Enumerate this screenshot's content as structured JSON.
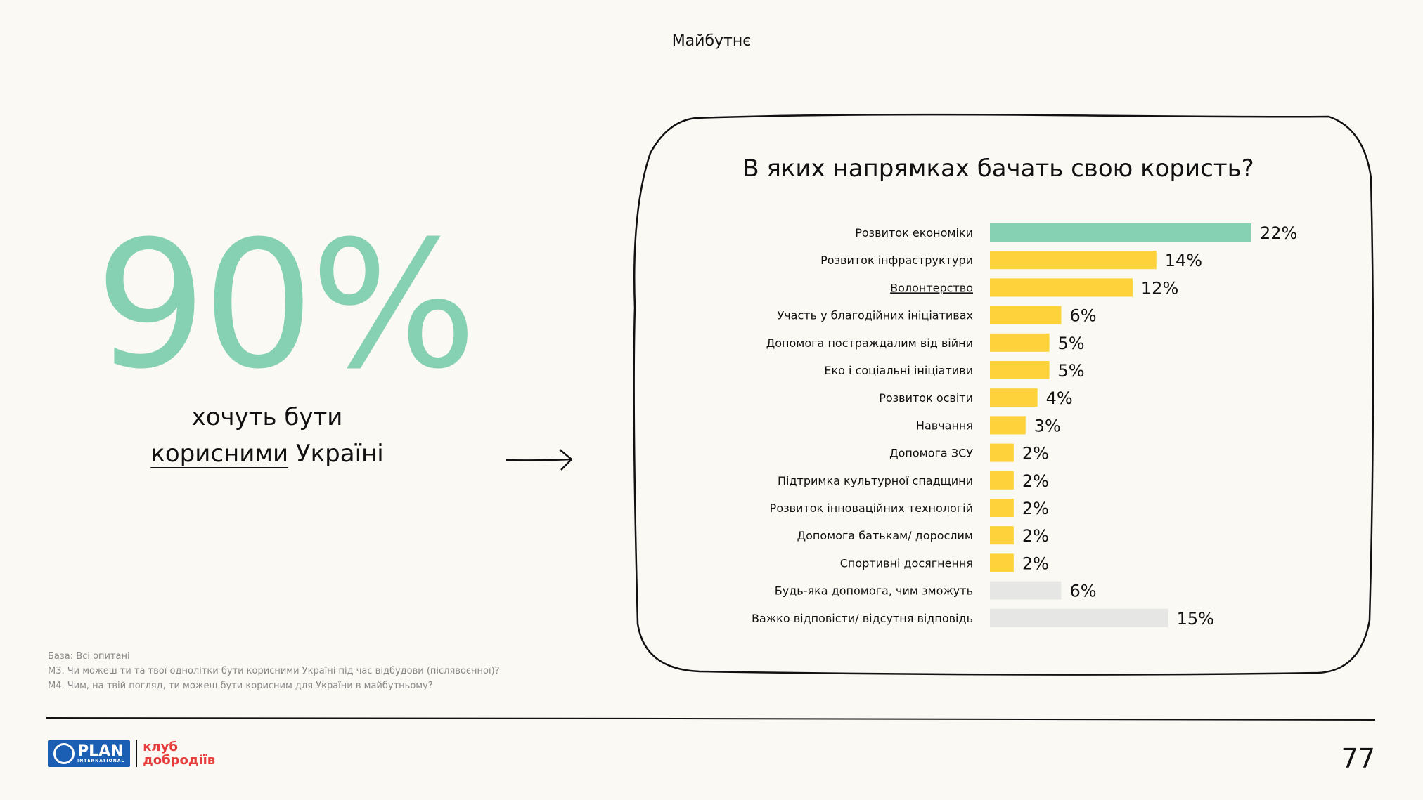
{
  "header": {
    "section": "Майбутнє"
  },
  "stat": {
    "value": "90%",
    "caption_line1": "хочуть бути",
    "caption_underlined": "корисними",
    "caption_rest": " Україні"
  },
  "colors": {
    "accent_green": "#86d0b3",
    "accent_yellow": "#fdd23a",
    "neutral_gray": "#e6e6e4"
  },
  "chart_data": {
    "type": "bar",
    "orientation": "horizontal",
    "title": "В яких напрямках бачать свою користь?",
    "unit": "%",
    "categories": [
      "Розвиток економіки",
      "Розвиток інфраструктури",
      "Волонтерство",
      "Участь у благодійних ініціативах",
      "Допомога постраждалим від війни",
      "Еко і соціальні ініціативи",
      "Розвиток освіти",
      "Навчання",
      "Допомога ЗСУ",
      "Підтримка культурної спадщини",
      "Розвиток інноваційних технологій",
      "Допомога батькам/ дорослим",
      "Спортивні досягнення",
      "Будь-яка допомога, чим зможуть",
      "Важко відповісти/ відсутня відповідь"
    ],
    "values": [
      22,
      14,
      12,
      6,
      5,
      5,
      4,
      3,
      2,
      2,
      2,
      2,
      2,
      6,
      15
    ],
    "value_labels": [
      "22%",
      "14%",
      "12%",
      "6%",
      "5%",
      "5%",
      "4%",
      "3%",
      "2%",
      "2%",
      "2%",
      "2%",
      "2%",
      "6%",
      "15%"
    ],
    "color_groups": [
      "green",
      "yellow",
      "yellow",
      "yellow",
      "yellow",
      "yellow",
      "yellow",
      "yellow",
      "yellow",
      "yellow",
      "yellow",
      "yellow",
      "yellow",
      "gray",
      "gray"
    ],
    "underlined_category": "Волонтерство",
    "xlim": [
      0,
      22
    ]
  },
  "footnotes": {
    "base": "База: Всі опитані",
    "m3": "М3. Чи можеш ти та твої однолітки бути корисними Україні під час відбудови (післявоєнної)?",
    "m4": "М4. Чим, на твій погляд, ти можеш бути корисним для України в майбутньому?"
  },
  "footer": {
    "logo_plan": "PLAN",
    "logo_plan_sub": "INTERNATIONAL",
    "logo_club_line1": "клуб",
    "logo_club_line2": "добродіїв",
    "page_number": "77"
  }
}
